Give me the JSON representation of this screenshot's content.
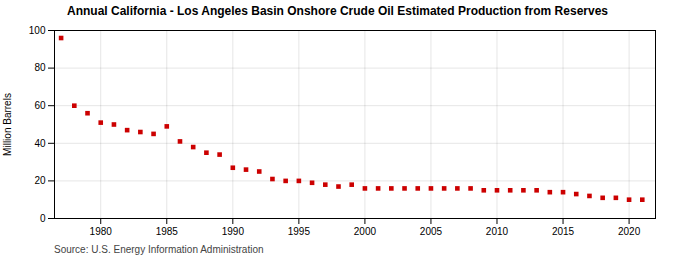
{
  "chart_data": {
    "type": "scatter",
    "title": "Annual California - Los Angeles Basin Onshore Crude Oil Estimated Production from Reserves",
    "ylabel": "Million Barrels",
    "annotations": [
      "Source: U.S. Energy Information Administration"
    ],
    "x": [
      1977,
      1978,
      1979,
      1980,
      1981,
      1982,
      1983,
      1984,
      1985,
      1986,
      1987,
      1988,
      1989,
      1990,
      1991,
      1992,
      1993,
      1994,
      1995,
      1996,
      1997,
      1998,
      1999,
      2000,
      2001,
      2002,
      2003,
      2004,
      2005,
      2006,
      2007,
      2008,
      2009,
      2010,
      2011,
      2012,
      2013,
      2014,
      2015,
      2016,
      2017,
      2018,
      2019,
      2020,
      2021
    ],
    "values": [
      96,
      60,
      56,
      51,
      50,
      47,
      46,
      45,
      49,
      41,
      38,
      35,
      34,
      27,
      26,
      25,
      21,
      20,
      20,
      19,
      18,
      17,
      18,
      16,
      16,
      16,
      16,
      16,
      16,
      16,
      16,
      16,
      15,
      15,
      15,
      15,
      15,
      14,
      14,
      13,
      12,
      11,
      11,
      10,
      10
    ],
    "color": "#cc0000",
    "marker": "square",
    "xlim": [
      1976.5,
      2022
    ],
    "ylim": [
      0,
      100
    ],
    "xticks": [
      1980,
      1985,
      1990,
      1995,
      2000,
      2005,
      2010,
      2015,
      2020
    ],
    "yticks": [
      0,
      20,
      40,
      60,
      80,
      100
    ],
    "grid": true
  }
}
